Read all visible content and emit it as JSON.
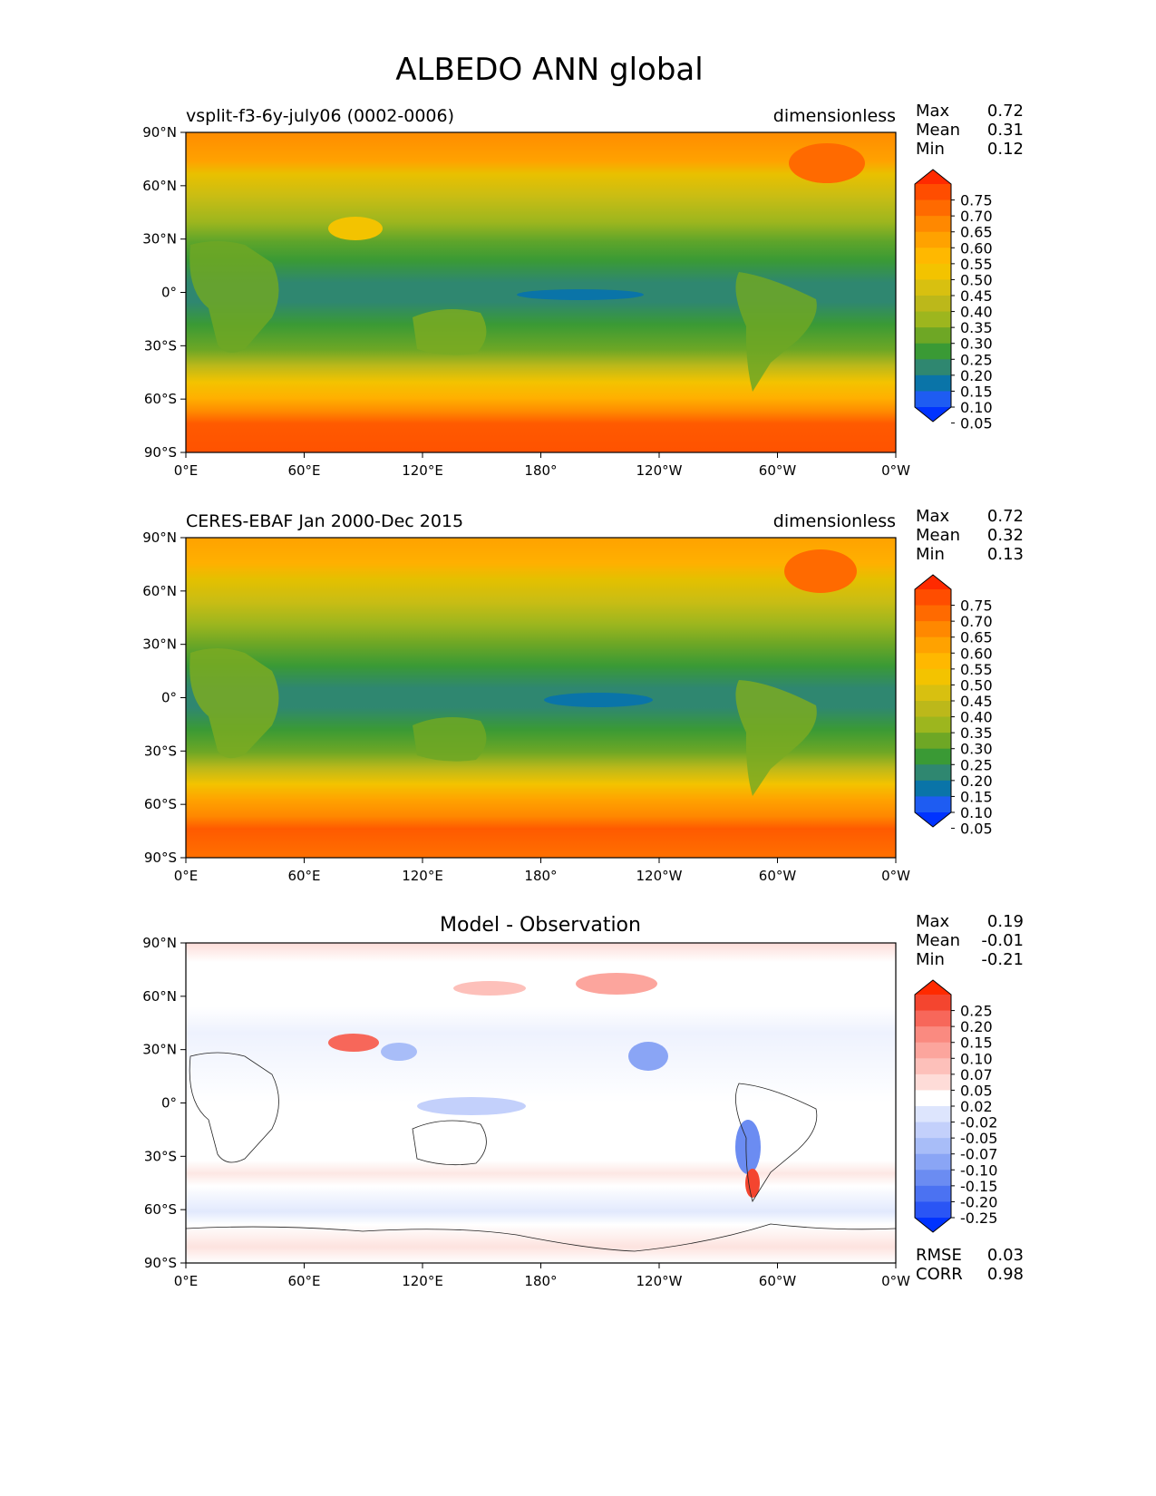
{
  "title": "ALBEDO ANN global",
  "chart_data": [
    {
      "type": "heatmap",
      "title_left": "vsplit-f3-6y-july06 (0002-0006)",
      "title_right": "dimensionless",
      "title_center": "",
      "xticks": [
        "0°E",
        "60°E",
        "120°E",
        "180°",
        "120°W",
        "60°W",
        "0°W"
      ],
      "yticks": [
        "90°N",
        "60°N",
        "30°N",
        "0°",
        "30°S",
        "60°S",
        "90°S"
      ],
      "xlim": [
        0,
        360
      ],
      "ylim": [
        -90,
        90
      ],
      "stats": [
        {
          "label": "Max",
          "value": "0.72"
        },
        {
          "label": "Mean",
          "value": "0.31"
        },
        {
          "label": "Min",
          "value": "0.12"
        }
      ],
      "colorbar": {
        "levels": [
          "0.75",
          "0.70",
          "0.65",
          "0.60",
          "0.55",
          "0.50",
          "0.45",
          "0.40",
          "0.35",
          "0.30",
          "0.25",
          "0.20",
          "0.15",
          "0.10",
          "0.05"
        ],
        "colors": [
          "#ff2a00",
          "#ff4d00",
          "#ff6a00",
          "#ff8800",
          "#ffa200",
          "#ffb800",
          "#f3c300",
          "#d8c010",
          "#bcb81a",
          "#9db61e",
          "#6ea725",
          "#3a9a35",
          "#2f8770",
          "#0a74a8",
          "#1e5cf2",
          "#0033ff"
        ]
      },
      "footer": []
    },
    {
      "type": "heatmap",
      "title_left": "CERES-EBAF Jan 2000-Dec 2015",
      "title_right": "dimensionless",
      "title_center": "",
      "xticks": [
        "0°E",
        "60°E",
        "120°E",
        "180°",
        "120°W",
        "60°W",
        "0°W"
      ],
      "yticks": [
        "90°N",
        "60°N",
        "30°N",
        "0°",
        "30°S",
        "60°S",
        "90°S"
      ],
      "xlim": [
        0,
        360
      ],
      "ylim": [
        -90,
        90
      ],
      "stats": [
        {
          "label": "Max",
          "value": "0.72"
        },
        {
          "label": "Mean",
          "value": "0.32"
        },
        {
          "label": "Min",
          "value": "0.13"
        }
      ],
      "colorbar": {
        "levels": [
          "0.75",
          "0.70",
          "0.65",
          "0.60",
          "0.55",
          "0.50",
          "0.45",
          "0.40",
          "0.35",
          "0.30",
          "0.25",
          "0.20",
          "0.15",
          "0.10",
          "0.05"
        ],
        "colors": [
          "#ff2a00",
          "#ff4d00",
          "#ff6a00",
          "#ff8800",
          "#ffa200",
          "#ffb800",
          "#f3c300",
          "#d8c010",
          "#bcb81a",
          "#9db61e",
          "#6ea725",
          "#3a9a35",
          "#2f8770",
          "#0a74a8",
          "#1e5cf2",
          "#0033ff"
        ]
      },
      "footer": []
    },
    {
      "type": "heatmap",
      "title_left": "",
      "title_right": "",
      "title_center": "Model - Observation",
      "xticks": [
        "0°E",
        "60°E",
        "120°E",
        "180°",
        "120°W",
        "60°W",
        "0°W"
      ],
      "yticks": [
        "90°N",
        "60°N",
        "30°N",
        "0°",
        "30°S",
        "60°S",
        "90°S"
      ],
      "xlim": [
        0,
        360
      ],
      "ylim": [
        -90,
        90
      ],
      "stats": [
        {
          "label": "Max",
          "value": "0.19"
        },
        {
          "label": "Mean",
          "value": "-0.01"
        },
        {
          "label": "Min",
          "value": "-0.21"
        }
      ],
      "colorbar": {
        "levels": [
          "0.25",
          "0.20",
          "0.15",
          "0.10",
          "0.07",
          "0.05",
          "0.02",
          "-0.02",
          "-0.05",
          "-0.07",
          "-0.10",
          "-0.15",
          "-0.20",
          "-0.25"
        ],
        "colors": [
          "#ff2a00",
          "#f4452f",
          "#f7675a",
          "#fa8a80",
          "#fca59d",
          "#fdc0ba",
          "#fedcd8",
          "#ffffff",
          "#dde5fd",
          "#c3d0fb",
          "#a8bdf8",
          "#8aa5f5",
          "#6b8cf2",
          "#4b72f2",
          "#2a55f5",
          "#0033ff"
        ]
      },
      "footer": [
        {
          "label": "RMSE",
          "value": "0.03"
        },
        {
          "label": "CORR",
          "value": "0.98"
        }
      ]
    }
  ]
}
